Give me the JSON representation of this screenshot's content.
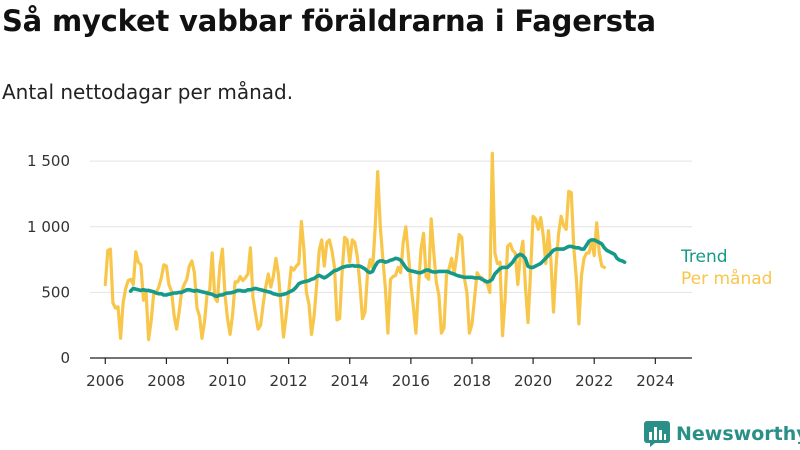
{
  "header": {
    "title": "Så mycket vabbar föräldrarna i Fagersta",
    "subtitle": "Antal nettodagar per månad."
  },
  "brand": {
    "name": "Newsworthy",
    "logo_icon": "bar-chart-logo-icon"
  },
  "chart_data": {
    "type": "line",
    "title": "Så mycket vabbar föräldrarna i Fagersta",
    "subtitle": "Antal nettodagar per månad.",
    "xlabel": "",
    "ylabel": "",
    "xlim": [
      2005.5,
      2025.2
    ],
    "ylim": [
      0,
      1600
    ],
    "x_ticks": [
      2006,
      2008,
      2010,
      2012,
      2014,
      2016,
      2018,
      2020,
      2022,
      2024
    ],
    "x_tick_labels": [
      "2006",
      "2008",
      "2010",
      "2012",
      "2014",
      "2016",
      "2018",
      "2020",
      "2022",
      "2024"
    ],
    "y_ticks": [
      0,
      500,
      1000,
      1500
    ],
    "y_tick_labels": [
      "0",
      "500",
      "1 000",
      "1 500"
    ],
    "grid": "horizontal",
    "legend": "right-end labels",
    "series": [
      {
        "name": "Trend",
        "color": "#14998a",
        "x_start": 2006.83,
        "x_step": 0.08333,
        "values": [
          510,
          530,
          525,
          520,
          515,
          520,
          515,
          515,
          510,
          505,
          495,
          490,
          490,
          480,
          480,
          485,
          490,
          495,
          495,
          500,
          500,
          510,
          520,
          520,
          515,
          510,
          515,
          510,
          505,
          500,
          495,
          490,
          485,
          475,
          470,
          480,
          480,
          490,
          495,
          495,
          500,
          505,
          515,
          515,
          510,
          510,
          520,
          520,
          525,
          530,
          525,
          520,
          515,
          510,
          505,
          500,
          490,
          485,
          480,
          480,
          485,
          490,
          500,
          510,
          520,
          540,
          565,
          575,
          580,
          585,
          590,
          600,
          605,
          620,
          630,
          620,
          610,
          620,
          635,
          650,
          665,
          670,
          680,
          690,
          695,
          700,
          700,
          705,
          700,
          700,
          700,
          690,
          680,
          660,
          650,
          660,
          700,
          730,
          740,
          740,
          730,
          735,
          745,
          750,
          760,
          755,
          745,
          720,
          690,
          670,
          665,
          660,
          655,
          650,
          650,
          660,
          670,
          670,
          660,
          655,
          655,
          660,
          660,
          660,
          660,
          655,
          645,
          640,
          630,
          625,
          620,
          615,
          615,
          615,
          615,
          610,
          610,
          610,
          600,
          590,
          580,
          585,
          600,
          640,
          660,
          680,
          690,
          690,
          690,
          710,
          730,
          760,
          780,
          790,
          780,
          760,
          700,
          690,
          690,
          700,
          710,
          720,
          740,
          760,
          780,
          800,
          820,
          830,
          830,
          830,
          830,
          840,
          850,
          850,
          845,
          840,
          840,
          830,
          830,
          860,
          890,
          900,
          900,
          890,
          880,
          870,
          840,
          820,
          810,
          800,
          790,
          760,
          745,
          740,
          730
        ]
      },
      {
        "name": "Per månad",
        "color": "#f8c64a",
        "x_start": 2006.0,
        "x_step": 0.08333,
        "values": [
          560,
          820,
          830,
          420,
          380,
          390,
          150,
          420,
          530,
          590,
          600,
          560,
          810,
          730,
          710,
          440,
          510,
          140,
          280,
          490,
          500,
          540,
          610,
          710,
          700,
          560,
          510,
          330,
          220,
          350,
          510,
          560,
          600,
          700,
          740,
          650,
          380,
          320,
          150,
          280,
          490,
          520,
          800,
          460,
          430,
          700,
          830,
          480,
          300,
          180,
          330,
          580,
          580,
          620,
          590,
          610,
          640,
          840,
          460,
          340,
          220,
          250,
          410,
          540,
          640,
          540,
          620,
          760,
          640,
          400,
          160,
          320,
          500,
          690,
          670,
          700,
          720,
          1040,
          830,
          500,
          410,
          180,
          320,
          550,
          820,
          900,
          700,
          880,
          900,
          820,
          690,
          290,
          300,
          650,
          920,
          900,
          730,
          900,
          880,
          770,
          560,
          300,
          350,
          650,
          750,
          680,
          1000,
          1420,
          1000,
          760,
          530,
          190,
          600,
          620,
          630,
          690,
          650,
          880,
          1000,
          800,
          560,
          390,
          190,
          540,
          830,
          950,
          620,
          600,
          1060,
          800,
          580,
          480,
          190,
          230,
          630,
          680,
          760,
          640,
          780,
          940,
          920,
          610,
          500,
          190,
          260,
          450,
          650,
          620,
          610,
          580,
          570,
          500,
          1560,
          800,
          720,
          730,
          170,
          450,
          850,
          870,
          820,
          800,
          560,
          780,
          890,
          550,
          270,
          640,
          1080,
          1060,
          980,
          1070,
          930,
          720,
          970,
          750,
          350,
          700,
          940,
          1080,
          1010,
          980,
          1270,
          1260,
          840,
          600,
          260,
          630,
          760,
          800,
          800,
          900,
          780,
          1030,
          800,
          700,
          690
        ]
      }
    ]
  }
}
